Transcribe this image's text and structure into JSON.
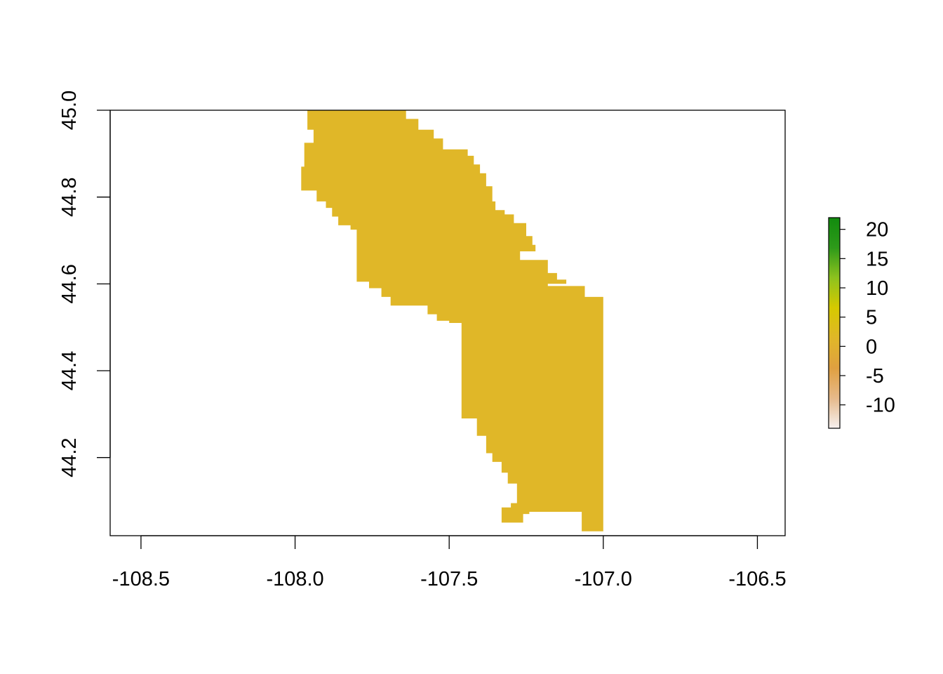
{
  "chart_data": {
    "type": "raster",
    "title": "",
    "xlabel": "",
    "ylabel": "",
    "xlim": [
      -108.6,
      -106.41
    ],
    "ylim": [
      44.02,
      45.0
    ],
    "x_ticks": [
      -108.5,
      -108.0,
      -107.5,
      -107.0,
      -106.5
    ],
    "x_tick_labels": [
      "-108.5",
      "-108.0",
      "-107.5",
      "-107.0",
      "-106.5"
    ],
    "y_ticks": [
      44.2,
      44.4,
      44.6,
      44.8,
      45.0
    ],
    "y_tick_labels": [
      "44.2",
      "44.4",
      "44.6",
      "44.8",
      "45.0"
    ],
    "raster_fill_color": "#E0B728",
    "raster_value_approx": 0,
    "raster_outline_lonlat": [
      [
        -107.96,
        45.0
      ],
      [
        -107.64,
        45.0
      ],
      [
        -107.64,
        44.98
      ],
      [
        -107.6,
        44.98
      ],
      [
        -107.6,
        44.955
      ],
      [
        -107.55,
        44.955
      ],
      [
        -107.55,
        44.935
      ],
      [
        -107.52,
        44.935
      ],
      [
        -107.52,
        44.91
      ],
      [
        -107.44,
        44.91
      ],
      [
        -107.44,
        44.895
      ],
      [
        -107.42,
        44.895
      ],
      [
        -107.42,
        44.875
      ],
      [
        -107.4,
        44.875
      ],
      [
        -107.4,
        44.855
      ],
      [
        -107.38,
        44.855
      ],
      [
        -107.38,
        44.825
      ],
      [
        -107.36,
        44.825
      ],
      [
        -107.36,
        44.79
      ],
      [
        -107.35,
        44.79
      ],
      [
        -107.35,
        44.77
      ],
      [
        -107.32,
        44.77
      ],
      [
        -107.32,
        44.76
      ],
      [
        -107.29,
        44.76
      ],
      [
        -107.29,
        44.74
      ],
      [
        -107.25,
        44.74
      ],
      [
        -107.25,
        44.71
      ],
      [
        -107.23,
        44.71
      ],
      [
        -107.23,
        44.69
      ],
      [
        -107.22,
        44.69
      ],
      [
        -107.22,
        44.675
      ],
      [
        -107.27,
        44.675
      ],
      [
        -107.27,
        44.655
      ],
      [
        -107.18,
        44.655
      ],
      [
        -107.18,
        44.625
      ],
      [
        -107.15,
        44.625
      ],
      [
        -107.15,
        44.61
      ],
      [
        -107.12,
        44.61
      ],
      [
        -107.12,
        44.6
      ],
      [
        -107.18,
        44.6
      ],
      [
        -107.18,
        44.595
      ],
      [
        -107.06,
        44.595
      ],
      [
        -107.06,
        44.57
      ],
      [
        -107.0,
        44.57
      ],
      [
        -107.0,
        44.03
      ],
      [
        -107.07,
        44.03
      ],
      [
        -107.07,
        44.075
      ],
      [
        -107.24,
        44.075
      ],
      [
        -107.24,
        44.07
      ],
      [
        -107.26,
        44.07
      ],
      [
        -107.26,
        44.05
      ],
      [
        -107.33,
        44.05
      ],
      [
        -107.33,
        44.085
      ],
      [
        -107.3,
        44.085
      ],
      [
        -107.3,
        44.095
      ],
      [
        -107.28,
        44.095
      ],
      [
        -107.28,
        44.14
      ],
      [
        -107.31,
        44.14
      ],
      [
        -107.31,
        44.165
      ],
      [
        -107.33,
        44.165
      ],
      [
        -107.33,
        44.19
      ],
      [
        -107.36,
        44.19
      ],
      [
        -107.36,
        44.21
      ],
      [
        -107.38,
        44.21
      ],
      [
        -107.38,
        44.25
      ],
      [
        -107.41,
        44.25
      ],
      [
        -107.41,
        44.29
      ],
      [
        -107.46,
        44.29
      ],
      [
        -107.46,
        44.51
      ],
      [
        -107.5,
        44.51
      ],
      [
        -107.5,
        44.515
      ],
      [
        -107.54,
        44.515
      ],
      [
        -107.54,
        44.53
      ],
      [
        -107.57,
        44.53
      ],
      [
        -107.57,
        44.55
      ],
      [
        -107.69,
        44.55
      ],
      [
        -107.69,
        44.57
      ],
      [
        -107.72,
        44.57
      ],
      [
        -107.72,
        44.59
      ],
      [
        -107.76,
        44.59
      ],
      [
        -107.76,
        44.605
      ],
      [
        -107.8,
        44.605
      ],
      [
        -107.8,
        44.725
      ],
      [
        -107.82,
        44.725
      ],
      [
        -107.82,
        44.735
      ],
      [
        -107.86,
        44.735
      ],
      [
        -107.86,
        44.755
      ],
      [
        -107.88,
        44.755
      ],
      [
        -107.88,
        44.775
      ],
      [
        -107.9,
        44.775
      ],
      [
        -107.9,
        44.79
      ],
      [
        -107.93,
        44.79
      ],
      [
        -107.93,
        44.815
      ],
      [
        -107.98,
        44.815
      ],
      [
        -107.98,
        44.87
      ],
      [
        -107.97,
        44.87
      ],
      [
        -107.97,
        44.925
      ],
      [
        -107.94,
        44.925
      ],
      [
        -107.94,
        44.955
      ],
      [
        -107.96,
        44.955
      ]
    ],
    "legend": {
      "position": "right",
      "scale_min": -14,
      "scale_max": 22,
      "ticks": [
        20,
        15,
        10,
        5,
        0,
        -5,
        -10
      ],
      "tick_labels": [
        "20",
        "15",
        "10",
        "5",
        "0",
        "-5",
        "-10"
      ],
      "gradient_colors": [
        "#F6F0EF",
        "#E6B98A",
        "#E0A040",
        "#E0B728",
        "#D6C900",
        "#8EC21E",
        "#2E9A1A",
        "#118B0E"
      ]
    }
  }
}
